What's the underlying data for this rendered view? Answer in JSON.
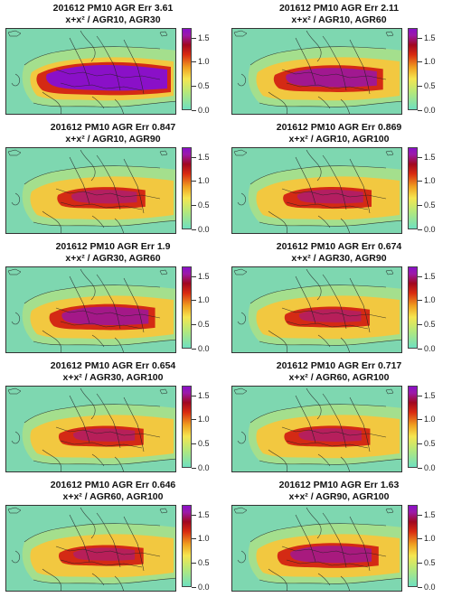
{
  "panels": [
    {
      "line1": "201612 PM10 AGR Err 3.61",
      "line2": "x+x² / AGR10, AGR30",
      "error": 3.61
    },
    {
      "line1": "201612 PM10 AGR Err 2.11",
      "line2": "x+x² / AGR10, AGR60",
      "error": 2.11
    },
    {
      "line1": "201612 PM10 AGR Err 0.847",
      "line2": "x+x² / AGR10, AGR90",
      "error": 0.847
    },
    {
      "line1": "201612 PM10 AGR Err 0.869",
      "line2": "x+x² / AGR10, AGR100",
      "error": 0.869
    },
    {
      "line1": "201612 PM10 AGR Err 1.9",
      "line2": "x+x² / AGR30, AGR60",
      "error": 1.9
    },
    {
      "line1": "201612 PM10 AGR Err 0.674",
      "line2": "x+x² / AGR30, AGR90",
      "error": 0.674
    },
    {
      "line1": "201612 PM10 AGR Err 0.654",
      "line2": "x+x² / AGR30, AGR100",
      "error": 0.654
    },
    {
      "line1": "201612 PM10 AGR Err 0.717",
      "line2": "x+x² / AGR60, AGR100",
      "error": 0.717
    },
    {
      "line1": "201612 PM10 AGR Err 0.646",
      "line2": "x+x² / AGR60, AGR100",
      "error": 0.646
    },
    {
      "line1": "201612 PM10 AGR Err 1.63",
      "line2": "x+x² / AGR90, AGR100",
      "error": 1.63
    }
  ],
  "legend": {
    "ticks": [
      "0.0",
      "0.5",
      "1.0",
      "1.5"
    ],
    "min": 0.0,
    "max": 1.7,
    "colors": [
      "#6ee0c0",
      "#b8e878",
      "#f5e650",
      "#f0a020",
      "#d82a10",
      "#a00820",
      "#8a10c8"
    ]
  },
  "map": {
    "sea_color": "#7ed7b0",
    "land_low_color": "#a8e08a"
  }
}
